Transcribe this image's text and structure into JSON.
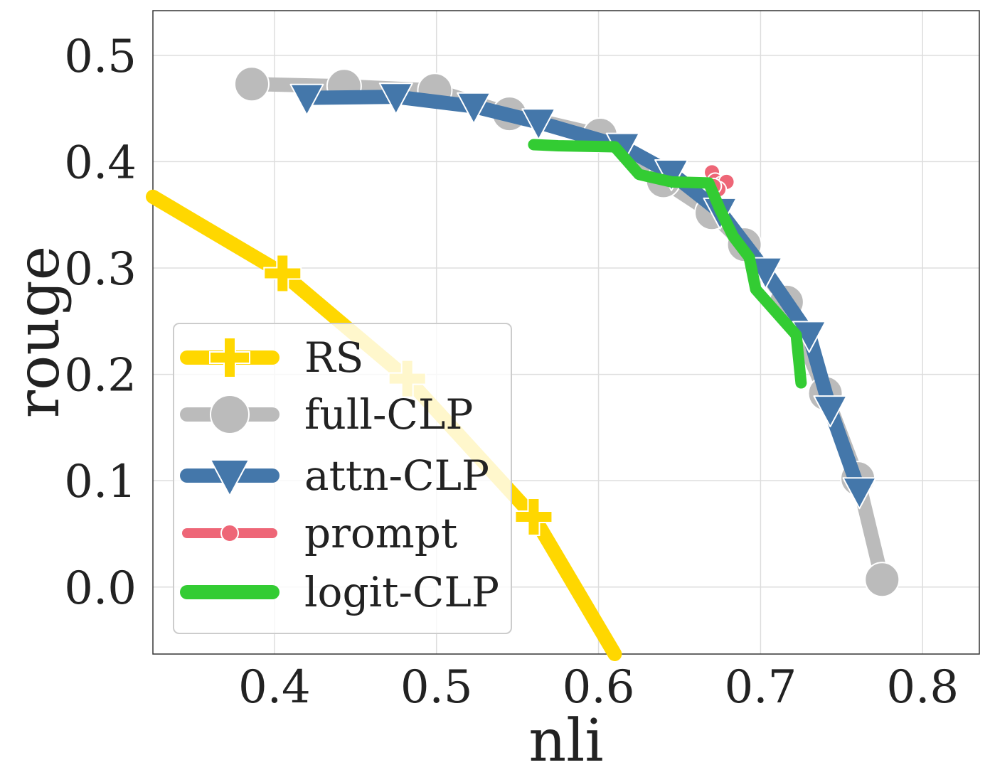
{
  "chart_data": {
    "type": "line",
    "title": "",
    "xlabel": "nli",
    "ylabel": "rouge",
    "xlim": [
      0.325,
      0.835
    ],
    "ylim": [
      -0.063,
      0.542
    ],
    "xticks": [
      0.4,
      0.5,
      0.6,
      0.7,
      0.8
    ],
    "yticks": [
      0.0,
      0.1,
      0.2,
      0.3,
      0.4,
      0.5
    ],
    "xtick_labels": [
      "0.4",
      "0.5",
      "0.6",
      "0.7",
      "0.8"
    ],
    "ytick_labels": [
      "0.0",
      "0.1",
      "0.2",
      "0.3",
      "0.4",
      "0.5"
    ],
    "grid": true,
    "legend_position": "lower-left",
    "series": [
      {
        "name": "RS",
        "color": "#FFD700",
        "marker": "plus",
        "line_points": [
          {
            "x": 0.325,
            "y": 0.367
          },
          {
            "x": 0.405,
            "y": 0.295
          },
          {
            "x": 0.482,
            "y": 0.196
          },
          {
            "x": 0.56,
            "y": 0.066
          },
          {
            "x": 0.61,
            "y": -0.063
          }
        ],
        "marker_points": [
          {
            "x": 0.405,
            "y": 0.295
          },
          {
            "x": 0.482,
            "y": 0.196
          },
          {
            "x": 0.56,
            "y": 0.066
          }
        ]
      },
      {
        "name": "full-CLP",
        "color": "#BBBBBB",
        "marker": "circle",
        "points": [
          {
            "x": 0.386,
            "y": 0.473
          },
          {
            "x": 0.443,
            "y": 0.471
          },
          {
            "x": 0.499,
            "y": 0.467
          },
          {
            "x": 0.545,
            "y": 0.445
          },
          {
            "x": 0.601,
            "y": 0.425
          },
          {
            "x": 0.64,
            "y": 0.382
          },
          {
            "x": 0.67,
            "y": 0.352
          },
          {
            "x": 0.69,
            "y": 0.322
          },
          {
            "x": 0.716,
            "y": 0.268
          },
          {
            "x": 0.74,
            "y": 0.182
          },
          {
            "x": 0.76,
            "y": 0.102
          },
          {
            "x": 0.775,
            "y": 0.007
          }
        ]
      },
      {
        "name": "attn-CLP",
        "color": "#4477AA",
        "marker": "triangle-down",
        "points": [
          {
            "x": 0.42,
            "y": 0.46
          },
          {
            "x": 0.475,
            "y": 0.461
          },
          {
            "x": 0.523,
            "y": 0.452
          },
          {
            "x": 0.563,
            "y": 0.437
          },
          {
            "x": 0.615,
            "y": 0.414
          },
          {
            "x": 0.645,
            "y": 0.389
          },
          {
            "x": 0.675,
            "y": 0.353
          },
          {
            "x": 0.703,
            "y": 0.297
          },
          {
            "x": 0.73,
            "y": 0.237
          },
          {
            "x": 0.743,
            "y": 0.167
          },
          {
            "x": 0.761,
            "y": 0.09
          }
        ]
      },
      {
        "name": "prompt",
        "color": "#EE6677",
        "marker": "dot",
        "points": [
          {
            "x": 0.67,
            "y": 0.39
          },
          {
            "x": 0.672,
            "y": 0.382
          },
          {
            "x": 0.676,
            "y": 0.379
          },
          {
            "x": 0.679,
            "y": 0.381
          },
          {
            "x": 0.674,
            "y": 0.374
          },
          {
            "x": 0.671,
            "y": 0.377
          }
        ]
      },
      {
        "name": "logit-CLP",
        "color": "#33CC33",
        "marker": "none",
        "points": [
          {
            "x": 0.56,
            "y": 0.416
          },
          {
            "x": 0.575,
            "y": 0.415
          },
          {
            "x": 0.61,
            "y": 0.414
          },
          {
            "x": 0.625,
            "y": 0.388
          },
          {
            "x": 0.645,
            "y": 0.381
          },
          {
            "x": 0.668,
            "y": 0.38
          },
          {
            "x": 0.675,
            "y": 0.355
          },
          {
            "x": 0.683,
            "y": 0.33
          },
          {
            "x": 0.693,
            "y": 0.31
          },
          {
            "x": 0.697,
            "y": 0.28
          },
          {
            "x": 0.722,
            "y": 0.237
          },
          {
            "x": 0.725,
            "y": 0.192
          }
        ]
      }
    ]
  }
}
